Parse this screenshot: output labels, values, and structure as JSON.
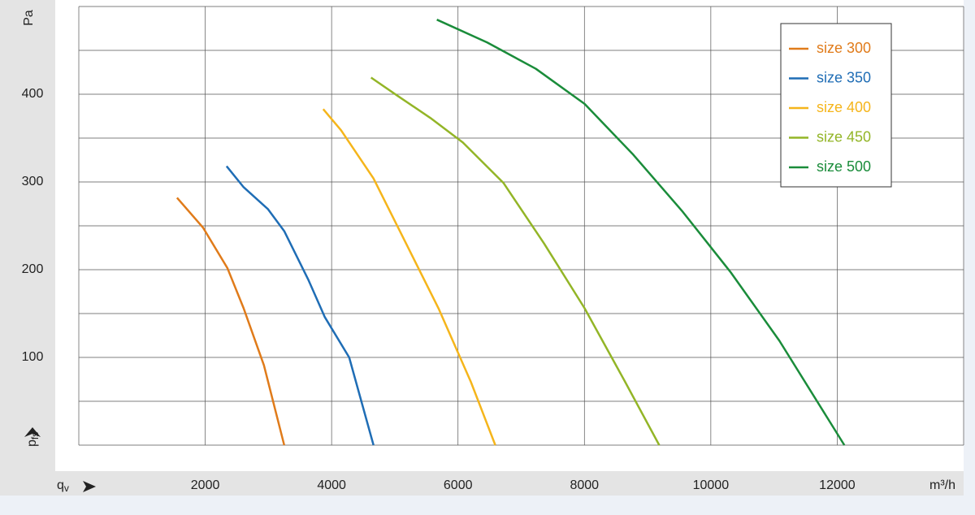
{
  "chart_data": {
    "type": "line",
    "y_unit": "Pa",
    "x_unit": "m³/h",
    "x_symbol": {
      "main": "q",
      "sub": "v"
    },
    "y_symbol": {
      "main": "p",
      "sub": "fs"
    },
    "xlim": [
      0,
      14000
    ],
    "ylim": [
      0,
      500
    ],
    "xticks": [
      2000,
      4000,
      6000,
      8000,
      10000,
      12000
    ],
    "yticks": [
      100,
      200,
      300,
      400
    ],
    "x_grid": [
      0,
      2000,
      4000,
      6000,
      8000,
      10000,
      12000,
      14000
    ],
    "y_grid": [
      0,
      50,
      100,
      150,
      200,
      250,
      300,
      350,
      400,
      450,
      500
    ],
    "legend": "upper right",
    "series": [
      {
        "name": "size 300",
        "color": "#e07b1a",
        "x": [
          1554,
          1965,
          2350,
          2608,
          2929,
          3250
        ],
        "values": [
          282,
          248,
          202,
          156,
          91,
          0
        ]
      },
      {
        "name": "size 350",
        "color": "#1f6db5",
        "x": [
          2338,
          2608,
          2993,
          3250,
          3635,
          3892,
          4278,
          4663
        ],
        "values": [
          318,
          294,
          269,
          244,
          188,
          146,
          100,
          0
        ]
      },
      {
        "name": "size 400",
        "color": "#f5b51b",
        "x": [
          3867,
          4149,
          4663,
          5177,
          5691,
          6204,
          6590
        ],
        "values": [
          383,
          359,
          304,
          230,
          156,
          72,
          0
        ]
      },
      {
        "name": "size 450",
        "color": "#93b527",
        "x": [
          4624,
          5048,
          5562,
          6076,
          6718,
          7360,
          8003,
          8645,
          9184
        ],
        "values": [
          419,
          398,
          373,
          345,
          299,
          230,
          156,
          72,
          0
        ]
      },
      {
        "name": "size 500",
        "color": "#1a8c3a",
        "x": [
          5665,
          6461,
          7232,
          8003,
          8774,
          9544,
          10315,
          11085,
          12113
        ],
        "values": [
          485,
          459,
          429,
          389,
          331,
          267,
          197,
          119,
          0
        ]
      }
    ]
  }
}
